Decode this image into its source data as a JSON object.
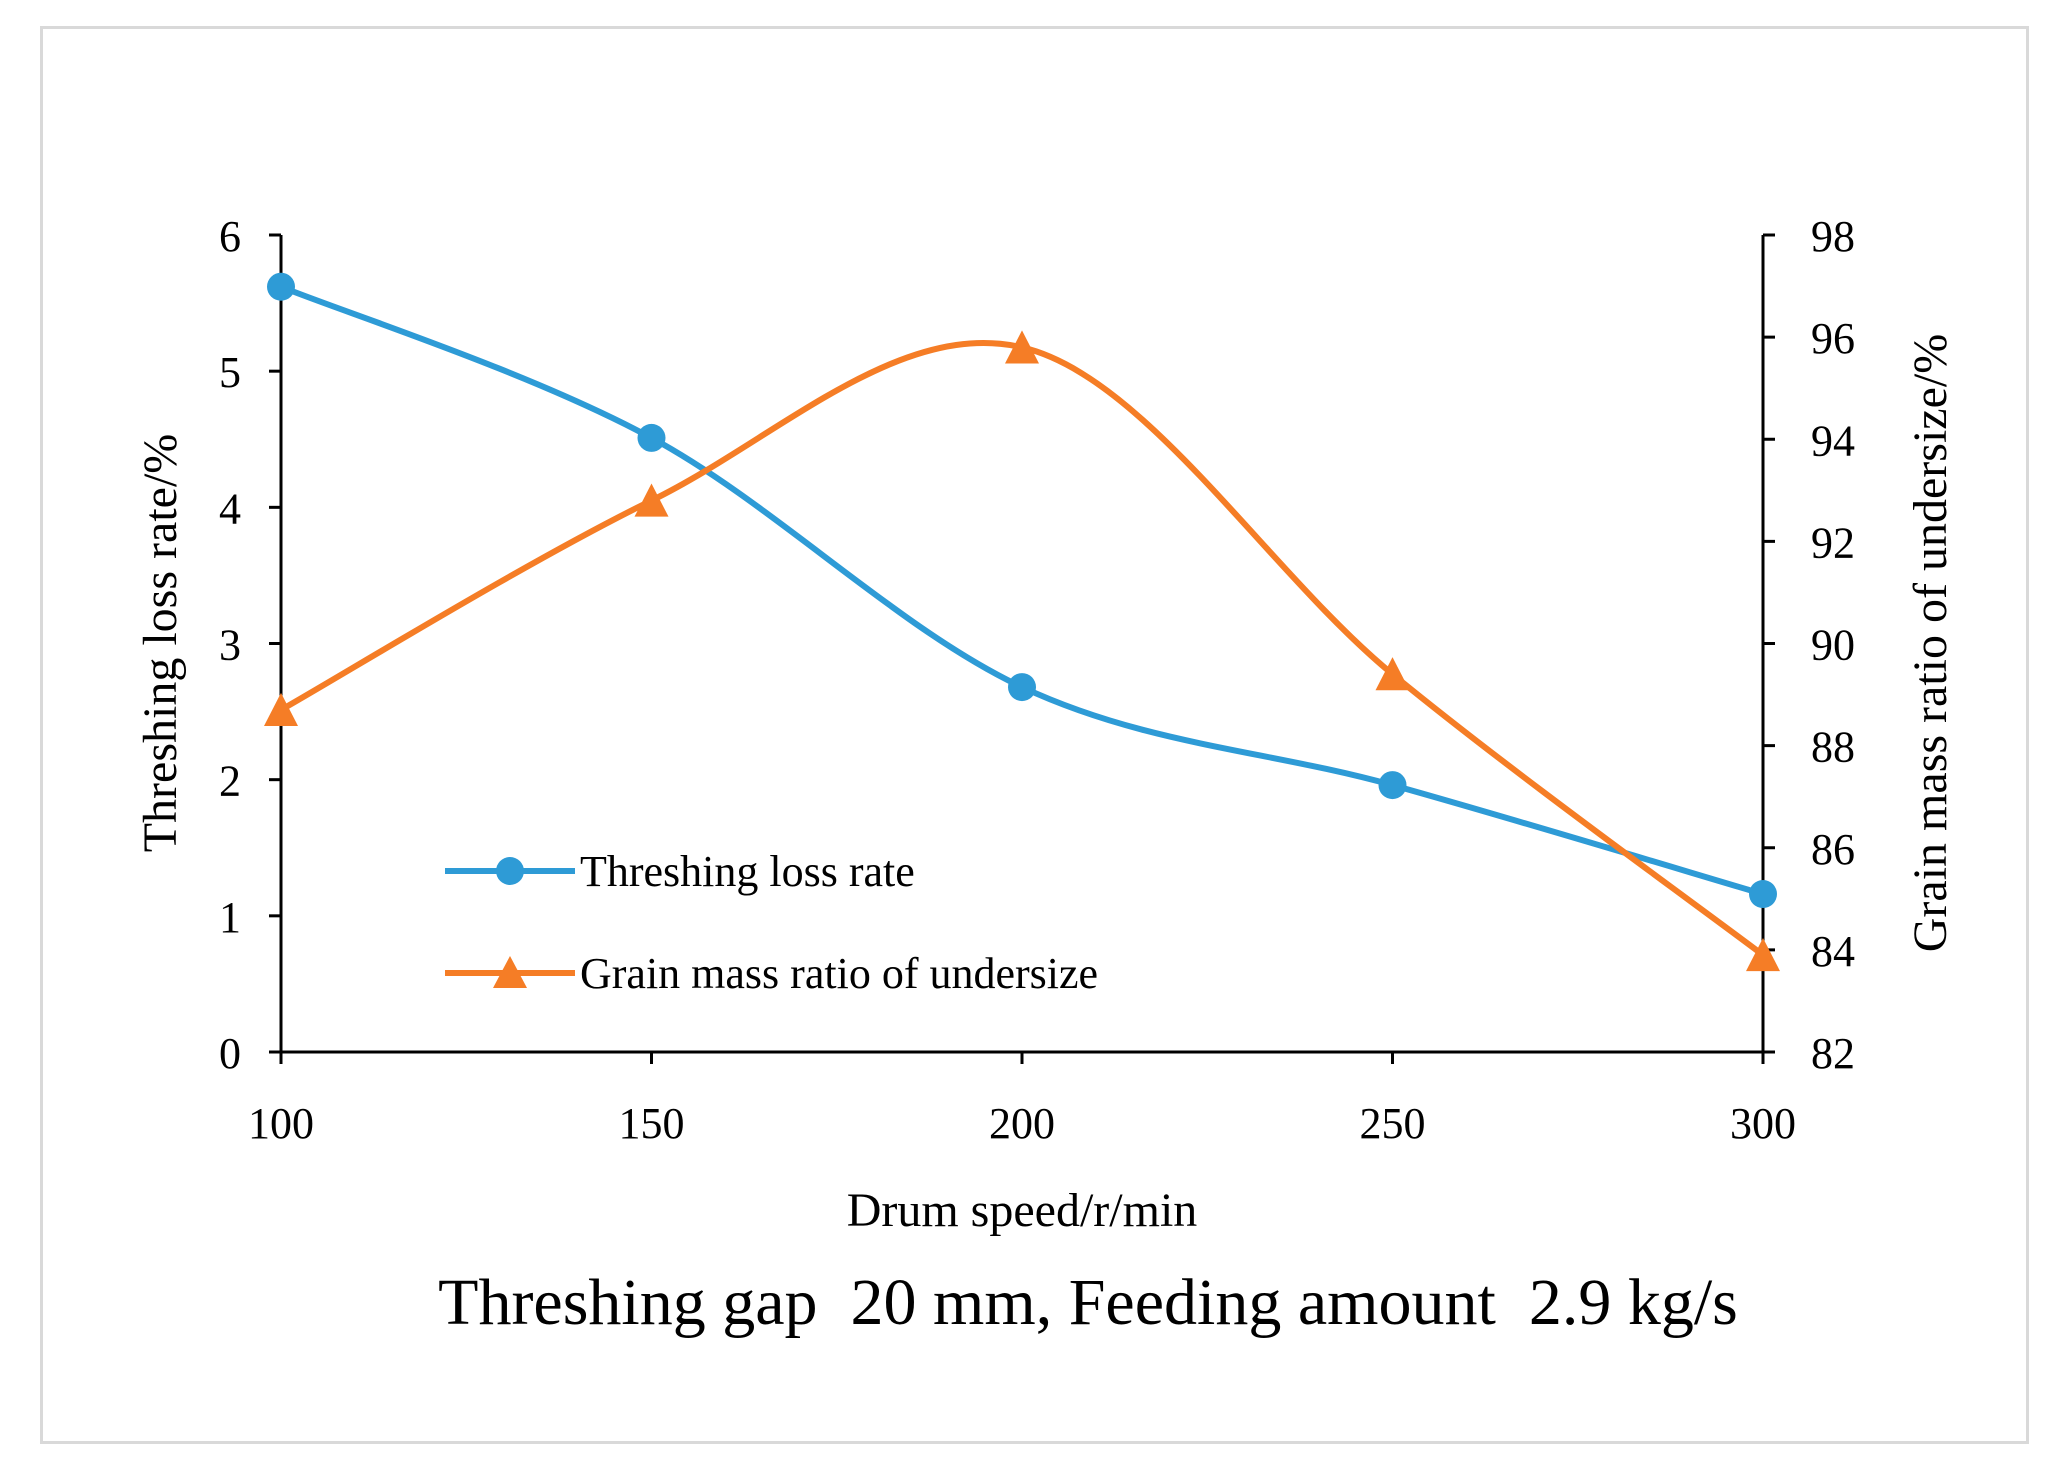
{
  "chart_data": {
    "type": "line",
    "title": "",
    "caption": "Threshing gap  20 mm, Feeding amount  2.9 kg/s",
    "xlabel": "Drum speed/r/min",
    "ylabel": "Threshing loss rate/%",
    "y2label": "Grain mass ratio of undersize/%",
    "x": [
      100,
      150,
      200,
      250,
      300
    ],
    "xlim": [
      100,
      300
    ],
    "ylim": [
      0,
      6
    ],
    "y2lim": [
      82,
      98
    ],
    "x_ticks": [
      "100",
      "150",
      "200",
      "250",
      "300"
    ],
    "y_ticks": [
      "0",
      "1",
      "2",
      "3",
      "4",
      "5",
      "6"
    ],
    "y2_ticks": [
      "82",
      "84",
      "86",
      "88",
      "90",
      "92",
      "94",
      "96",
      "98"
    ],
    "grid": false,
    "legend_position": "bottom-left",
    "series": [
      {
        "name": "Threshing loss rate",
        "axis": "left",
        "marker": "circle",
        "color": "#2e9bd6",
        "values": [
          5.62,
          4.51,
          2.68,
          1.96,
          1.16
        ]
      },
      {
        "name": "Grain mass ratio of undersize",
        "axis": "right",
        "marker": "triangle",
        "color": "#f57d26",
        "values": [
          88.7,
          92.8,
          95.8,
          89.4,
          83.9
        ]
      }
    ]
  }
}
